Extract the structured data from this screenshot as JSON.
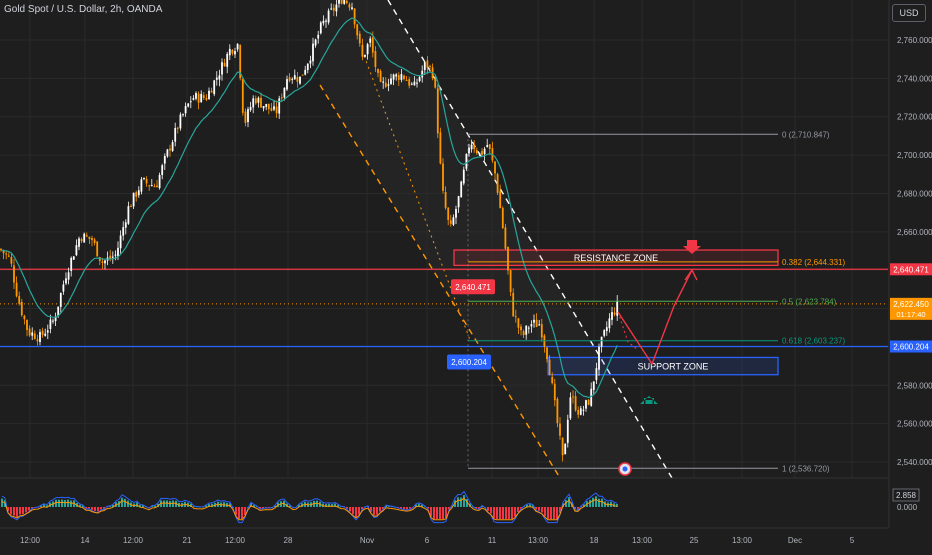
{
  "header": {
    "symbol_title": "Gold Spot / U.S. Dollar, 2h, OANDA",
    "currency": "USD"
  },
  "chart_data": {
    "type": "candlestick",
    "title": "Gold Spot / U.S. Dollar, 2h, OANDA",
    "x_tick_labels": [
      "12:00",
      "14",
      "12:00",
      "21",
      "12:00",
      "28",
      "Nov",
      "6",
      "11",
      "13:00",
      "18",
      "13:00",
      "25",
      "13:00",
      "Dec",
      "5"
    ],
    "y_tick_labels": [
      "2,760.000",
      "2,740.000",
      "2,720.000",
      "2,700.000",
      "2,680.000",
      "2,660.000",
      "2,640.000",
      "2,620.000",
      "2,600.000",
      "2,580.000",
      "2,560.000",
      "2,540.000"
    ],
    "ylim": [
      2528,
      2785
    ],
    "price_path": [
      {
        "x": 0,
        "p": 2651
      },
      {
        "x": 10,
        "p": 2646
      },
      {
        "x": 18,
        "p": 2625
      },
      {
        "x": 28,
        "p": 2608
      },
      {
        "x": 40,
        "p": 2605
      },
      {
        "x": 54,
        "p": 2614
      },
      {
        "x": 66,
        "p": 2638
      },
      {
        "x": 80,
        "p": 2658
      },
      {
        "x": 92,
        "p": 2656
      },
      {
        "x": 102,
        "p": 2644
      },
      {
        "x": 116,
        "p": 2648
      },
      {
        "x": 128,
        "p": 2672
      },
      {
        "x": 142,
        "p": 2686
      },
      {
        "x": 156,
        "p": 2684
      },
      {
        "x": 168,
        "p": 2702
      },
      {
        "x": 180,
        "p": 2718
      },
      {
        "x": 192,
        "p": 2730
      },
      {
        "x": 206,
        "p": 2730
      },
      {
        "x": 218,
        "p": 2742
      },
      {
        "x": 230,
        "p": 2755
      },
      {
        "x": 238,
        "p": 2758
      },
      {
        "x": 244,
        "p": 2716
      },
      {
        "x": 254,
        "p": 2730
      },
      {
        "x": 264,
        "p": 2726
      },
      {
        "x": 276,
        "p": 2722
      },
      {
        "x": 288,
        "p": 2742
      },
      {
        "x": 300,
        "p": 2740
      },
      {
        "x": 312,
        "p": 2754
      },
      {
        "x": 322,
        "p": 2768
      },
      {
        "x": 332,
        "p": 2775
      },
      {
        "x": 342,
        "p": 2782
      },
      {
        "x": 352,
        "p": 2778
      },
      {
        "x": 362,
        "p": 2750
      },
      {
        "x": 370,
        "p": 2760
      },
      {
        "x": 380,
        "p": 2735
      },
      {
        "x": 390,
        "p": 2740
      },
      {
        "x": 402,
        "p": 2742
      },
      {
        "x": 414,
        "p": 2735
      },
      {
        "x": 426,
        "p": 2748
      },
      {
        "x": 434,
        "p": 2742
      },
      {
        "x": 442,
        "p": 2682
      },
      {
        "x": 450,
        "p": 2660
      },
      {
        "x": 460,
        "p": 2680
      },
      {
        "x": 470,
        "p": 2708
      },
      {
        "x": 480,
        "p": 2700
      },
      {
        "x": 488,
        "p": 2706
      },
      {
        "x": 496,
        "p": 2688
      },
      {
        "x": 504,
        "p": 2658
      },
      {
        "x": 512,
        "p": 2620
      },
      {
        "x": 522,
        "p": 2605
      },
      {
        "x": 530,
        "p": 2612
      },
      {
        "x": 540,
        "p": 2612
      },
      {
        "x": 548,
        "p": 2594
      },
      {
        "x": 556,
        "p": 2565
      },
      {
        "x": 563,
        "p": 2540
      },
      {
        "x": 570,
        "p": 2575
      },
      {
        "x": 580,
        "p": 2565
      },
      {
        "x": 590,
        "p": 2573
      },
      {
        "x": 600,
        "p": 2600
      },
      {
        "x": 610,
        "p": 2615
      },
      {
        "x": 618,
        "p": 2622
      }
    ],
    "moving_average_color": "#26a69a",
    "levels": [
      {
        "name": "resistance-line",
        "price": 2640.471,
        "label": "2,640.471",
        "color": "#f23645"
      },
      {
        "name": "support-line",
        "price": 2600.204,
        "label": "2,600.204",
        "color": "#2962ff"
      },
      {
        "name": "last-price-line",
        "price": 2622.45,
        "label": "2,622.450",
        "countdown": "01:17:40",
        "color": "#ff9800"
      }
    ],
    "fibonacci": [
      {
        "ratio": "0",
        "label": "0 (2,710.847)",
        "price": 2710.847,
        "color": "#9598a1"
      },
      {
        "ratio": "0.382",
        "label": "0.382 (2,644.331)",
        "price": 2644.331,
        "color": "#ff9800"
      },
      {
        "ratio": "0.5",
        "label": "0.5 (2,623.784)",
        "price": 2623.784,
        "color": "#4caf50"
      },
      {
        "ratio": "0.618",
        "label": "0.618 (2,603.237)",
        "price": 2603.237,
        "color": "#089981"
      },
      {
        "ratio": "1",
        "label": "1 (2,536.720)",
        "price": 2536.72,
        "color": "#9598a1"
      }
    ],
    "zones": [
      {
        "name": "resistance-zone",
        "label": "RESISTANCE ZONE",
        "top": 2650.5,
        "bottom": 2642.5,
        "color": "#f23645"
      },
      {
        "name": "support-zone",
        "label": "SUPPORT ZONE",
        "top": 2594.5,
        "bottom": 2585.5,
        "color": "#2962ff"
      }
    ],
    "chart_price_labels": [
      {
        "name": "resistance-price-tag",
        "text": "2,640.471",
        "color": "#f23645"
      },
      {
        "name": "support-price-tag",
        "text": "2,600.204",
        "color": "#2962ff"
      }
    ],
    "indicator": {
      "value_label": "2.858",
      "zero_label": "0.000"
    },
    "colors": {
      "up": "#ffffff",
      "down": "#ff9800",
      "background": "#1e1e1e",
      "grid": "#2a2a2a",
      "text": "#b2b5be"
    }
  }
}
